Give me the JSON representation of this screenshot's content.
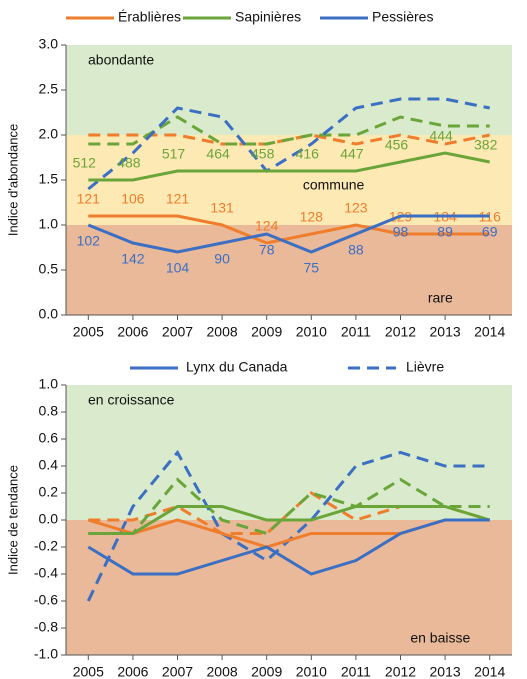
{
  "chart_data": [
    {
      "type": "line",
      "y_label": "Indice d'abondance",
      "x": [
        2005,
        2006,
        2007,
        2008,
        2009,
        2010,
        2011,
        2012,
        2013,
        2014
      ],
      "xlim": [
        2004.5,
        2014.5
      ],
      "ylim": [
        0,
        3
      ],
      "yticks": [
        {
          "value": 0,
          "label": "0.0"
        },
        0.5,
        {
          "value": 1,
          "label": "1.0"
        },
        1.5,
        {
          "value": 2,
          "label": "2.0"
        },
        2.5,
        {
          "value": 3,
          "label": "3.0"
        }
      ],
      "bands": [
        {
          "from": 0,
          "to": 1,
          "color": "#e9b99a",
          "label": "rare"
        },
        {
          "from": 1,
          "to": 2,
          "color": "#fde9b3",
          "label": "commune"
        },
        {
          "from": 2,
          "to": 3,
          "color": "#d9ebcc",
          "label": "abondante"
        }
      ],
      "series": [
        {
          "name": "Érablières",
          "color": "#f07d2b",
          "values": [
            1.1,
            1.1,
            1.1,
            1.0,
            0.8,
            0.9,
            1.0,
            0.9,
            0.9,
            0.9
          ],
          "dashed_values": [
            2.0,
            2.0,
            2.0,
            1.9,
            1.9,
            2.0,
            1.9,
            2.0,
            1.9,
            2.0
          ],
          "value_labels": [
            "121",
            "106",
            "121",
            "131",
            "124",
            "128",
            "123",
            "129",
            "184",
            "116"
          ]
        },
        {
          "name": "Sapinières",
          "color": "#6aa53a",
          "values": [
            1.5,
            1.5,
            1.6,
            1.6,
            1.6,
            1.6,
            1.6,
            1.7,
            1.8,
            1.7
          ],
          "dashed_values": [
            1.9,
            1.9,
            2.2,
            1.9,
            1.9,
            2.0,
            2.0,
            2.2,
            2.1,
            2.1
          ],
          "value_labels": [
            "512",
            "488",
            "517",
            "464",
            "458",
            "416",
            "447",
            "456",
            "444",
            "382"
          ]
        },
        {
          "name": "Pessières",
          "color": "#3b6fc4",
          "values": [
            1.0,
            0.8,
            0.7,
            0.8,
            0.9,
            0.7,
            0.9,
            1.1,
            1.1,
            1.1
          ],
          "dashed_values": [
            1.4,
            1.8,
            2.3,
            2.2,
            1.6,
            1.9,
            2.3,
            2.4,
            2.4,
            2.3
          ],
          "value_labels": [
            "102",
            "142",
            "104",
            "90",
            "78",
            "75",
            "88",
            "98",
            "89",
            "69"
          ]
        }
      ]
    },
    {
      "type": "line",
      "y_label": "Indice de tendance",
      "x": [
        2005,
        2006,
        2007,
        2008,
        2009,
        2010,
        2011,
        2012,
        2013,
        2014
      ],
      "xlim": [
        2004.5,
        2014.5
      ],
      "ylim": [
        -1,
        1
      ],
      "yticks": [
        {
          "value": -1,
          "label": "-1.0"
        },
        -0.8,
        -0.6,
        -0.4,
        -0.2,
        {
          "value": 0,
          "label": "0.0"
        },
        0.2,
        0.4,
        0.6,
        0.8,
        {
          "value": 1,
          "label": "1.0"
        }
      ],
      "bands": [
        {
          "from": -1,
          "to": 0,
          "color": "#e9b99a",
          "label": "en baisse"
        },
        {
          "from": 0,
          "to": 1,
          "color": "#d9ebcc",
          "label": "en croissance"
        }
      ],
      "style_legend": {
        "color": "#3b6fc4",
        "solid": "Lynx du Canada",
        "dashed": "Lièvre"
      },
      "series": [
        {
          "color": "#f07d2b",
          "values": [
            0.0,
            -0.1,
            0.0,
            -0.1,
            -0.2,
            -0.1,
            -0.1,
            -0.1,
            0.0,
            0.0
          ],
          "dashed_values": [
            0.0,
            0.0,
            0.1,
            -0.1,
            -0.1,
            0.2,
            0.0,
            0.1,
            0.1,
            0.0
          ]
        },
        {
          "color": "#6aa53a",
          "values": [
            -0.1,
            -0.1,
            0.1,
            0.1,
            0.0,
            0.0,
            0.1,
            0.1,
            0.1,
            0.0
          ],
          "dashed_values": [
            -0.1,
            -0.1,
            0.3,
            0.0,
            -0.1,
            0.2,
            0.1,
            0.3,
            0.1,
            0.1
          ]
        },
        {
          "color": "#3b6fc4",
          "values": [
            -0.2,
            -0.4,
            -0.4,
            -0.3,
            -0.2,
            -0.4,
            -0.3,
            -0.1,
            0.0,
            0.0
          ],
          "dashed_values": [
            -0.6,
            0.1,
            0.5,
            -0.1,
            -0.3,
            0.0,
            0.4,
            0.5,
            0.4,
            0.4
          ]
        }
      ]
    }
  ]
}
